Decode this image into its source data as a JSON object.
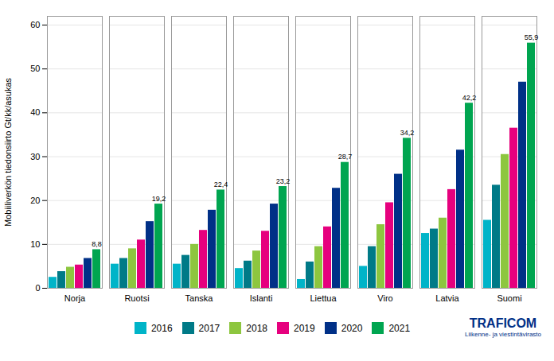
{
  "chart_data": {
    "type": "bar",
    "ylabel": "Mobiiliverkön tiedonsiirto Gt/kk/asukas",
    "categories": [
      "Norja",
      "Ruotsi",
      "Tanska",
      "Islanti",
      "Liettua",
      "Viro",
      "Latvia",
      "Suomi"
    ],
    "series": [
      {
        "name": "2016",
        "color": "#00B4C8",
        "values": [
          2.5,
          5.5,
          5.5,
          4.5,
          2.0,
          5.0,
          12.5,
          15.5
        ]
      },
      {
        "name": "2017",
        "color": "#007A87",
        "values": [
          3.8,
          6.8,
          7.5,
          6.2,
          6.0,
          9.5,
          13.5,
          23.5
        ]
      },
      {
        "name": "2018",
        "color": "#8DC63F",
        "values": [
          4.8,
          9.0,
          10.0,
          8.5,
          9.5,
          14.5,
          16.0,
          30.5
        ]
      },
      {
        "name": "2019",
        "color": "#E6007E",
        "values": [
          5.3,
          11.0,
          13.2,
          13.0,
          14.0,
          19.5,
          22.5,
          36.5
        ]
      },
      {
        "name": "2020",
        "color": "#003087",
        "values": [
          6.8,
          15.2,
          17.8,
          19.2,
          22.8,
          26.0,
          31.5,
          47.0
        ]
      },
      {
        "name": "2021",
        "color": "#00A550",
        "values": [
          8.8,
          19.2,
          22.4,
          23.2,
          28.7,
          34.2,
          42.2,
          55.9
        ],
        "value_labels": [
          "8,8",
          "19,2",
          "22,4",
          "23,2",
          "28,7",
          "34,2",
          "42,2",
          "55,9"
        ]
      }
    ],
    "ylim": [
      0,
      62
    ],
    "yticks": [
      0,
      10,
      20,
      30,
      40,
      50,
      60
    ],
    "grid": true,
    "legend": "bottom",
    "data_labels": true,
    "annotations": [
      {
        "text": "TRAFICOM",
        "color": "#003087"
      },
      {
        "text": "Liikenne- ja viestintävirasto",
        "color": "#003087"
      }
    ]
  }
}
